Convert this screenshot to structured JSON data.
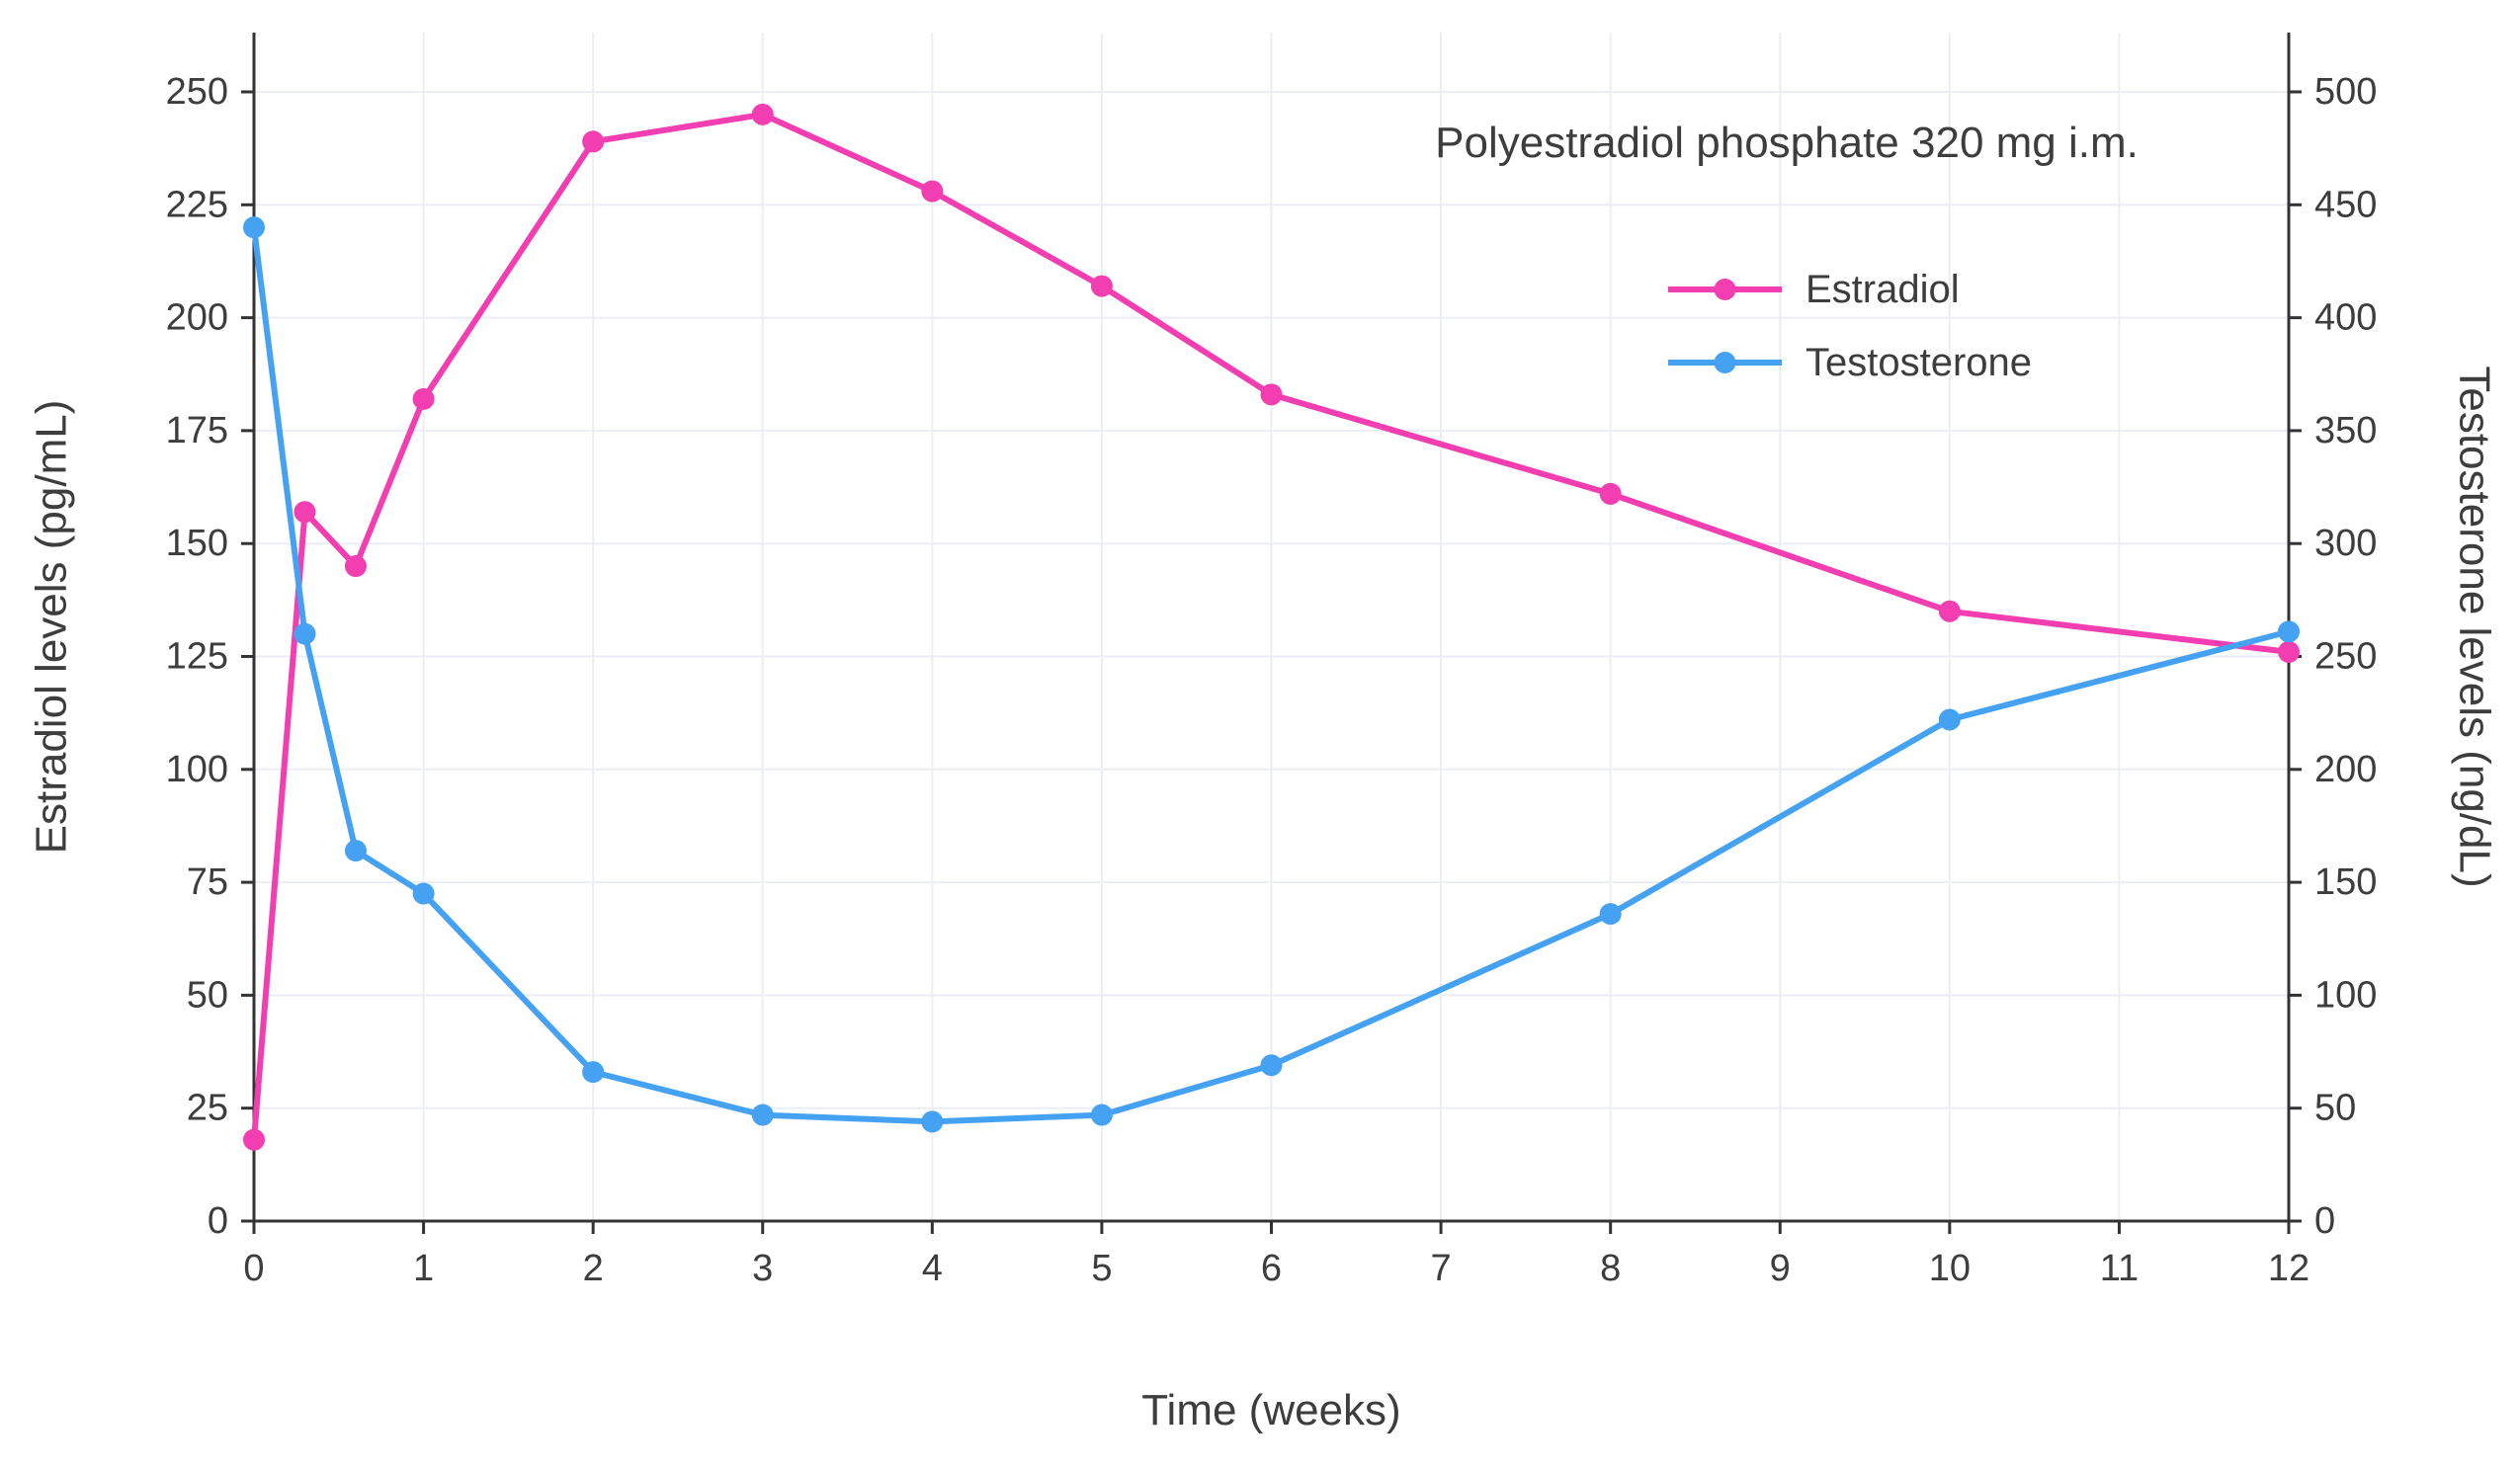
{
  "style": {
    "background": "#ffffff",
    "grid_color": "#EBEEF4",
    "axis_color": "#333333",
    "text_color": "#3d3d3d",
    "estradiol_color": "#F23EB0",
    "testosterone_color": "#45A2F2"
  },
  "chart_data": {
    "type": "line",
    "annotation": "Polyestradiol phosphate 320 mg i.m.",
    "xlabel": "Time (weeks)",
    "ylabel_left": "Estradiol levels (pg/mL)",
    "ylabel_right": "Testosterone levels (ng/dL)",
    "xlim": [
      0,
      12
    ],
    "ylim_left": [
      0,
      250
    ],
    "ylim_right": [
      0,
      500
    ],
    "x_ticks": [
      0,
      1,
      2,
      3,
      4,
      5,
      6,
      7,
      8,
      9,
      10,
      11,
      12
    ],
    "y_left_ticks": [
      0,
      25,
      50,
      75,
      100,
      125,
      150,
      175,
      200,
      225,
      250
    ],
    "y_right_ticks": [
      0,
      50,
      100,
      150,
      200,
      250,
      300,
      350,
      400,
      450,
      500
    ],
    "grid": true,
    "legend_position": "top-right-inside",
    "series": [
      {
        "name": "Estradiol",
        "axis": "left",
        "unit": "pg/mL",
        "color": "#F23EB0",
        "x": [
          0,
          0.3,
          0.6,
          1,
          2,
          3,
          4,
          5,
          6,
          8,
          10,
          12
        ],
        "values": [
          18,
          157,
          145,
          182,
          239,
          245,
          228,
          207,
          183,
          161,
          135,
          126
        ]
      },
      {
        "name": "Testosterone",
        "axis": "right",
        "unit": "ng/dL",
        "color": "#45A2F2",
        "x": [
          0,
          0.3,
          0.6,
          1,
          2,
          3,
          4,
          5,
          6,
          8,
          10,
          12
        ],
        "values": [
          440,
          260,
          164,
          145,
          66,
          47,
          44,
          47,
          69,
          136,
          222,
          261
        ]
      }
    ]
  }
}
